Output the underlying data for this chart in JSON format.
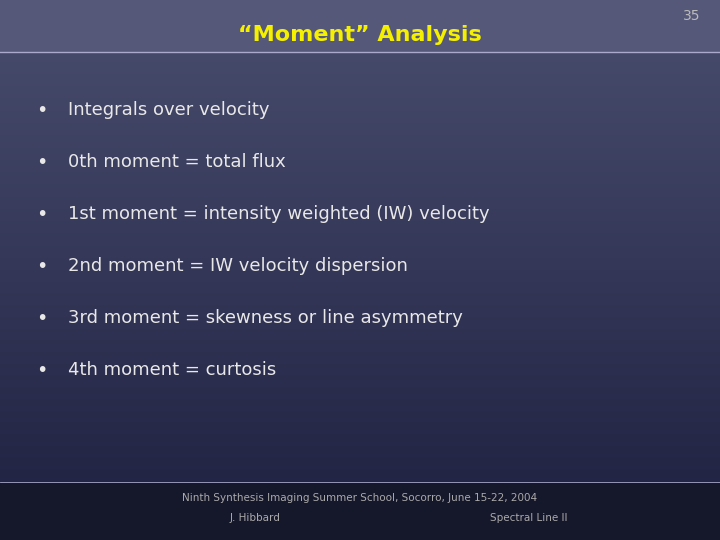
{
  "title": "“Moment” Analysis",
  "title_color": "#f5f000",
  "title_fontsize": 16,
  "slide_number": "35",
  "slide_number_color": "#bbbbbb",
  "slide_number_fontsize": 10,
  "header_bg_color": "#555878",
  "body_bg_top": "#4a4e6e",
  "body_bg_bottom": "#1e2040",
  "separator_color": "#aaaacc",
  "bullet_color": "#e8e8e8",
  "bullet_fontsize": 13,
  "bullet_items": [
    "Integrals over velocity",
    "0th moment = total flux",
    "1st moment = intensity weighted (IW) velocity",
    "2nd moment = IW velocity dispersion",
    "3rd moment = skewness or line asymmetry",
    "4th moment = curtosis"
  ],
  "footer_text1": "Ninth Synthesis Imaging Summer School, Socorro, June 15-22, 2004",
  "footer_text2_left": "J. Hibbard",
  "footer_text2_right": "Spectral Line II",
  "footer_color": "#aaaaaa",
  "footer_fontsize": 7.5
}
